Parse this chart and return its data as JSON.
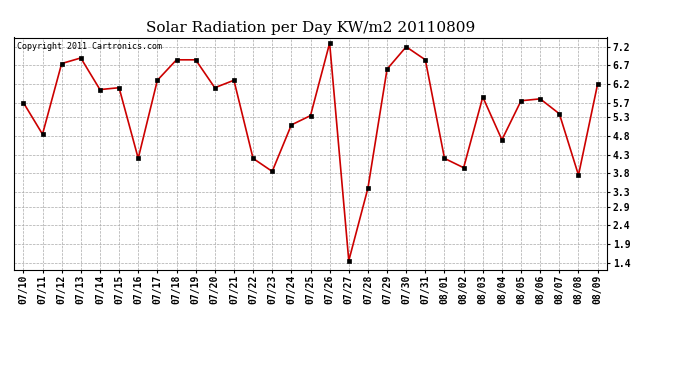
{
  "title": "Solar Radiation per Day KW/m2 20110809",
  "copyright": "Copyright 2011 Cartronics.com",
  "dates": [
    "07/10",
    "07/11",
    "07/12",
    "07/13",
    "07/14",
    "07/15",
    "07/16",
    "07/17",
    "07/18",
    "07/19",
    "07/20",
    "07/21",
    "07/22",
    "07/23",
    "07/24",
    "07/25",
    "07/26",
    "07/27",
    "07/28",
    "07/29",
    "07/30",
    "07/31",
    "08/01",
    "08/02",
    "08/03",
    "08/04",
    "08/05",
    "08/06",
    "08/07",
    "08/08",
    "08/09"
  ],
  "values": [
    5.7,
    4.85,
    6.75,
    6.9,
    6.05,
    6.1,
    4.2,
    6.3,
    6.85,
    6.85,
    6.1,
    6.3,
    4.2,
    3.85,
    5.1,
    5.35,
    7.3,
    1.45,
    3.4,
    6.6,
    7.2,
    6.85,
    4.2,
    3.95,
    5.85,
    4.7,
    5.75,
    5.8,
    5.4,
    3.75,
    6.2
  ],
  "line_color": "#cc0000",
  "marker_color": "#000000",
  "bg_color": "#ffffff",
  "grid_color": "#aaaaaa",
  "yticks": [
    1.4,
    1.9,
    2.4,
    2.9,
    3.3,
    3.8,
    4.3,
    4.8,
    5.3,
    5.7,
    6.2,
    6.7,
    7.2
  ],
  "ylim": [
    1.2,
    7.45
  ],
  "title_fontsize": 11,
  "tick_fontsize": 7,
  "copyright_fontsize": 6
}
